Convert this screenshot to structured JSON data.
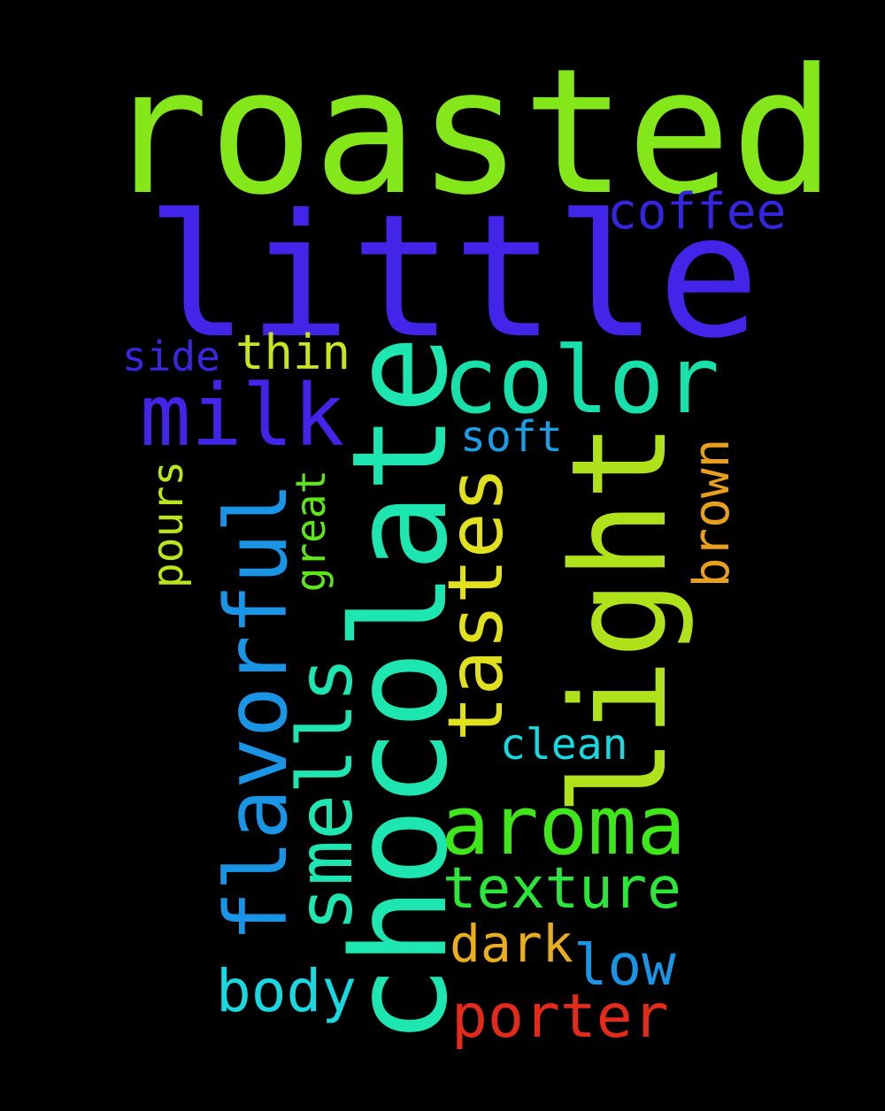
{
  "words": [
    {
      "text": "roasted",
      "color": "#84e71a",
      "orientation": "horizontal"
    },
    {
      "text": "little",
      "color": "#4225e8",
      "orientation": "horizontal"
    },
    {
      "text": "chocolate",
      "color": "#1ee6b0",
      "orientation": "vertical"
    },
    {
      "text": "light",
      "color": "#b0e21c",
      "orientation": "vertical"
    },
    {
      "text": "color",
      "color": "#18e0aa",
      "orientation": "horizontal"
    },
    {
      "text": "flavorful",
      "color": "#1a95e6",
      "orientation": "vertical"
    },
    {
      "text": "tastes",
      "color": "#e0e01c",
      "orientation": "vertical"
    },
    {
      "text": "smells",
      "color": "#1ee6b0",
      "orientation": "vertical"
    },
    {
      "text": "aroma",
      "color": "#3ee61a",
      "orientation": "horizontal"
    },
    {
      "text": "milk",
      "color": "#4225e8",
      "orientation": "horizontal"
    },
    {
      "text": "texture",
      "color": "#2ce639",
      "orientation": "horizontal"
    },
    {
      "text": "porter",
      "color": "#e62a1a",
      "orientation": "horizontal"
    },
    {
      "text": "body",
      "color": "#18d8e0",
      "orientation": "horizontal"
    },
    {
      "text": "brown",
      "color": "#e8a01c",
      "orientation": "vertical"
    },
    {
      "text": "coffee",
      "color": "#3325e0",
      "orientation": "horizontal"
    },
    {
      "text": "dark",
      "color": "#e8ae1c",
      "orientation": "horizontal"
    },
    {
      "text": "low",
      "color": "#1a95e6",
      "orientation": "horizontal"
    },
    {
      "text": "pours",
      "color": "#b8e61a",
      "orientation": "vertical"
    },
    {
      "text": "great",
      "color": "#5ee61a",
      "orientation": "vertical"
    },
    {
      "text": "thin",
      "color": "#c8e61a",
      "orientation": "horizontal"
    },
    {
      "text": "side",
      "color": "#3a25e0",
      "orientation": "horizontal"
    },
    {
      "text": "soft",
      "color": "#1a9ee6",
      "orientation": "horizontal"
    },
    {
      "text": "clean",
      "color": "#18d8e0",
      "orientation": "horizontal"
    }
  ]
}
